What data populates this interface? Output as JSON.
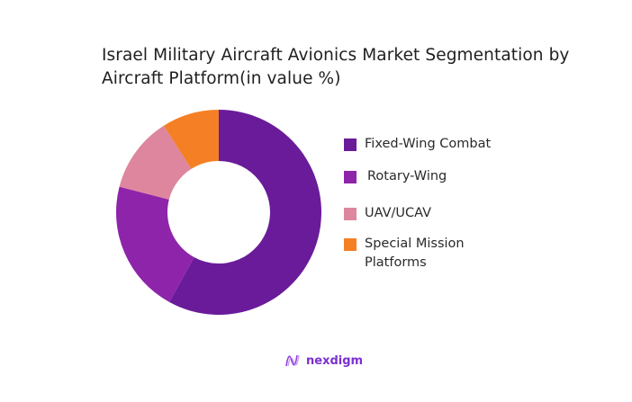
{
  "title": "Israel Military Aircraft Avionics Market Segmentation by Aircraft Platform(in value %)",
  "chart_data": {
    "type": "pie",
    "subtype": "donut",
    "title": "Israel Military Aircraft Avionics Market Segmentation by Aircraft Platform(in value %)",
    "categories": [
      "Fixed-Wing Combat",
      "Rotary-Wing",
      "UAV/UCAV",
      "Special Mission Platforms"
    ],
    "values": [
      58,
      21,
      12,
      9
    ],
    "colors": [
      "#6a1b9a",
      "#8e24aa",
      "#dd869e",
      "#f57f25"
    ],
    "legend_position": "right",
    "start_angle": "12 o'clock, clockwise"
  },
  "legend": {
    "items": [
      {
        "label": "Fixed-Wing Combat",
        "color": "#6a1b9a"
      },
      {
        "label": "Rotary-Wing",
        "color": "#8e24aa"
      },
      {
        "label": "UAV/UCAV",
        "color": "#dd869e"
      },
      {
        "label": "Special Mission Platforms",
        "color": "#f57f25"
      }
    ]
  },
  "branding": {
    "logo_text": "nexdigm",
    "logo_icon": "nexdigm-wave-icon"
  }
}
